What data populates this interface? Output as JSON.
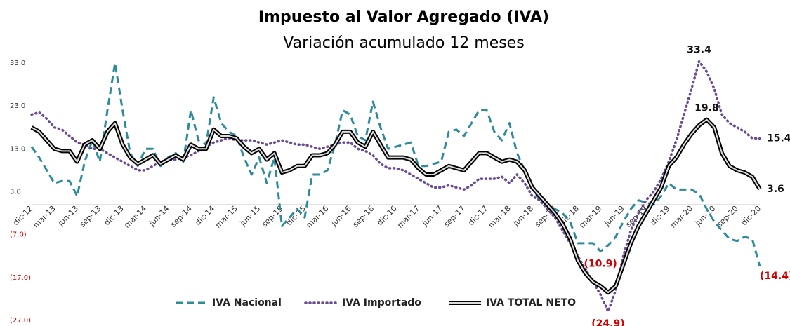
{
  "chart_data": {
    "type": "line",
    "title": "Impuesto al Valor Agregado (IVA)",
    "subtitle": "Variación acumulado 12 meses",
    "categories": [
      "dic-12",
      null,
      null,
      "mar-13",
      null,
      null,
      "jun-13",
      null,
      null,
      "sep-13",
      null,
      null,
      "dic-13",
      null,
      null,
      "mar-14",
      null,
      null,
      "jun-14",
      null,
      null,
      "sep-14",
      null,
      null,
      "dic-14",
      null,
      null,
      "mar-15",
      null,
      null,
      "jun-15",
      null,
      null,
      "sep-15",
      null,
      null,
      "dic-15",
      null,
      null,
      "mar-16",
      null,
      null,
      "jun-16",
      null,
      null,
      "sep-16",
      null,
      null,
      "dic-16",
      null,
      null,
      "mar-17",
      null,
      null,
      "jun-17",
      null,
      null,
      "sep-17",
      null,
      null,
      "dic-17",
      null,
      null,
      "mar-18",
      null,
      null,
      "jun-18",
      null,
      null,
      "sep-18",
      null,
      null,
      "dic-18",
      null,
      null,
      "mar-19",
      null,
      null,
      "jun-19",
      null,
      null,
      "sep-19",
      null,
      null,
      "dic-19",
      null,
      null,
      "mar-20",
      null,
      null,
      "jun-20",
      null,
      null,
      "sep-20",
      null,
      null,
      "dic-20"
    ],
    "ylim": [
      -27,
      33
    ],
    "yticks": [
      {
        "value": 33,
        "label": "33.0"
      },
      {
        "value": 23,
        "label": "23.0"
      },
      {
        "value": 13,
        "label": "13.0"
      },
      {
        "value": 3,
        "label": "3.0"
      },
      {
        "value": -7,
        "label": "(7.0)"
      },
      {
        "value": -17,
        "label": "(17.0)"
      },
      {
        "value": -27,
        "label": "(27.0)"
      }
    ],
    "series": [
      {
        "name": "IVA Nacional",
        "color": "#2e8b9a",
        "style": "dashed",
        "values": [
          13.5,
          11,
          8,
          5,
          5.5,
          5.5,
          2,
          10,
          15,
          10,
          22,
          33,
          22,
          12,
          9,
          13,
          13,
          9,
          11,
          12,
          10,
          22,
          15,
          14,
          25,
          19,
          17,
          16,
          11,
          7,
          11,
          5,
          11,
          -5,
          -3,
          -1,
          -3,
          7,
          7,
          8,
          14,
          22,
          21,
          16,
          15,
          24,
          18,
          13,
          13.5,
          14,
          14.5,
          9,
          9,
          9.5,
          10,
          17,
          17.5,
          16,
          19,
          22,
          22,
          17,
          15,
          19,
          12,
          8,
          4,
          1,
          0,
          -1,
          -2,
          -4,
          -9,
          -9,
          -9,
          -10.9,
          -9.5,
          -7.5,
          -4,
          -1,
          1,
          0.5,
          0,
          2,
          5,
          3.5,
          3.5,
          3.5,
          2.5,
          -1,
          -4,
          -6,
          -8,
          -8.5,
          -7.5,
          -8,
          -14.4
        ],
        "value_labels": [
          null,
          null,
          null,
          null,
          null,
          null,
          null,
          null,
          null,
          null,
          null,
          null,
          null,
          null,
          null,
          null,
          null,
          null,
          null,
          null,
          null,
          null,
          null,
          null,
          null,
          null,
          null,
          null,
          null,
          null,
          null,
          null,
          null,
          null,
          null,
          null,
          null,
          null,
          null,
          null,
          null,
          null,
          null,
          null,
          null,
          null,
          null,
          null,
          null,
          null,
          null,
          null,
          null,
          null,
          null,
          null,
          null,
          null,
          null,
          null,
          null,
          null,
          null,
          null,
          null,
          null,
          null,
          null,
          null,
          null,
          null,
          null,
          null,
          null,
          null,
          "(10.9)",
          null,
          null,
          null,
          null,
          null,
          null,
          null,
          null,
          null,
          null,
          null,
          null,
          null,
          null,
          null,
          null,
          null,
          null,
          null,
          null,
          "(14.4)"
        ]
      },
      {
        "name": "IVA Importado",
        "color": "#6a4c93",
        "style": "dotted",
        "values": [
          21,
          21.5,
          20,
          18,
          17.5,
          16,
          14.5,
          14,
          13,
          13,
          12,
          11,
          10,
          9,
          8,
          8,
          9,
          10,
          10.5,
          10.5,
          11,
          11.5,
          12.5,
          13.5,
          14.5,
          15,
          15.5,
          15,
          15,
          15,
          14.5,
          14,
          14.5,
          15,
          14.5,
          14,
          14,
          13.5,
          13,
          13.5,
          14,
          14.5,
          14.5,
          13,
          12.5,
          11.5,
          9.5,
          8.5,
          8.5,
          8,
          7,
          6,
          5,
          4,
          4,
          4.5,
          4,
          3.5,
          4.5,
          6,
          6,
          6,
          6.5,
          5,
          7,
          5,
          2,
          1,
          -1,
          -3,
          -6,
          -9,
          -12,
          -15,
          -18,
          -21,
          -24.9,
          -20,
          -12,
          -6,
          -2,
          1,
          3,
          6,
          10,
          15,
          21,
          27,
          33.4,
          31,
          27,
          21,
          19,
          18,
          17,
          15.5,
          15.4
        ],
        "value_labels": [
          null,
          null,
          null,
          null,
          null,
          null,
          null,
          null,
          null,
          null,
          null,
          null,
          null,
          null,
          null,
          null,
          null,
          null,
          null,
          null,
          null,
          null,
          null,
          null,
          null,
          null,
          null,
          null,
          null,
          null,
          null,
          null,
          null,
          null,
          null,
          null,
          null,
          null,
          null,
          null,
          null,
          null,
          null,
          null,
          null,
          null,
          null,
          null,
          null,
          null,
          null,
          null,
          null,
          null,
          null,
          null,
          null,
          null,
          null,
          null,
          null,
          null,
          null,
          null,
          null,
          null,
          null,
          null,
          null,
          null,
          null,
          null,
          null,
          null,
          null,
          null,
          "(24.9)",
          null,
          null,
          null,
          null,
          null,
          null,
          null,
          null,
          null,
          null,
          null,
          "33.4",
          null,
          null,
          null,
          null,
          null,
          null,
          null,
          "15.4"
        ]
      },
      {
        "name": "IVA TOTAL NETO",
        "color": "#000000",
        "style": "double",
        "values": [
          18,
          17,
          15,
          13,
          12.5,
          12.5,
          10,
          14,
          15,
          13,
          17,
          19,
          14,
          11,
          9.5,
          10.5,
          11.5,
          9.5,
          10.5,
          11.5,
          10.5,
          14,
          13,
          13,
          17.5,
          16,
          16,
          15.5,
          13.5,
          12,
          13,
          10.5,
          12,
          7.5,
          8,
          9,
          9,
          11.5,
          11.5,
          12,
          14,
          17,
          17,
          14.5,
          13.5,
          17,
          14,
          11,
          11,
          11,
          10.5,
          8.5,
          7,
          7,
          8,
          9,
          8.5,
          8,
          10,
          12,
          12,
          11,
          10,
          10.5,
          10,
          8,
          4,
          2,
          0,
          -2,
          -4.5,
          -8,
          -13,
          -16,
          -18,
          -19,
          -20.5,
          -19,
          -14,
          -9,
          -5,
          -2,
          1,
          4,
          9,
          11,
          14,
          16.5,
          18.5,
          19.8,
          18,
          12,
          9,
          8,
          7.5,
          6.5,
          3.6
        ],
        "value_labels": [
          null,
          null,
          null,
          null,
          null,
          null,
          null,
          null,
          null,
          null,
          null,
          null,
          null,
          null,
          null,
          null,
          null,
          null,
          null,
          null,
          null,
          null,
          null,
          null,
          null,
          null,
          null,
          null,
          null,
          null,
          null,
          null,
          null,
          null,
          null,
          null,
          null,
          null,
          null,
          null,
          null,
          null,
          null,
          null,
          null,
          null,
          null,
          null,
          null,
          null,
          null,
          null,
          null,
          null,
          null,
          null,
          null,
          null,
          null,
          null,
          null,
          null,
          null,
          null,
          null,
          null,
          null,
          null,
          null,
          null,
          null,
          null,
          null,
          null,
          null,
          null,
          null,
          null,
          null,
          null,
          null,
          null,
          null,
          null,
          null,
          null,
          null,
          null,
          null,
          "19.8",
          null,
          null,
          null,
          null,
          null,
          null,
          "3.6"
        ]
      }
    ],
    "legend": "bottom"
  }
}
